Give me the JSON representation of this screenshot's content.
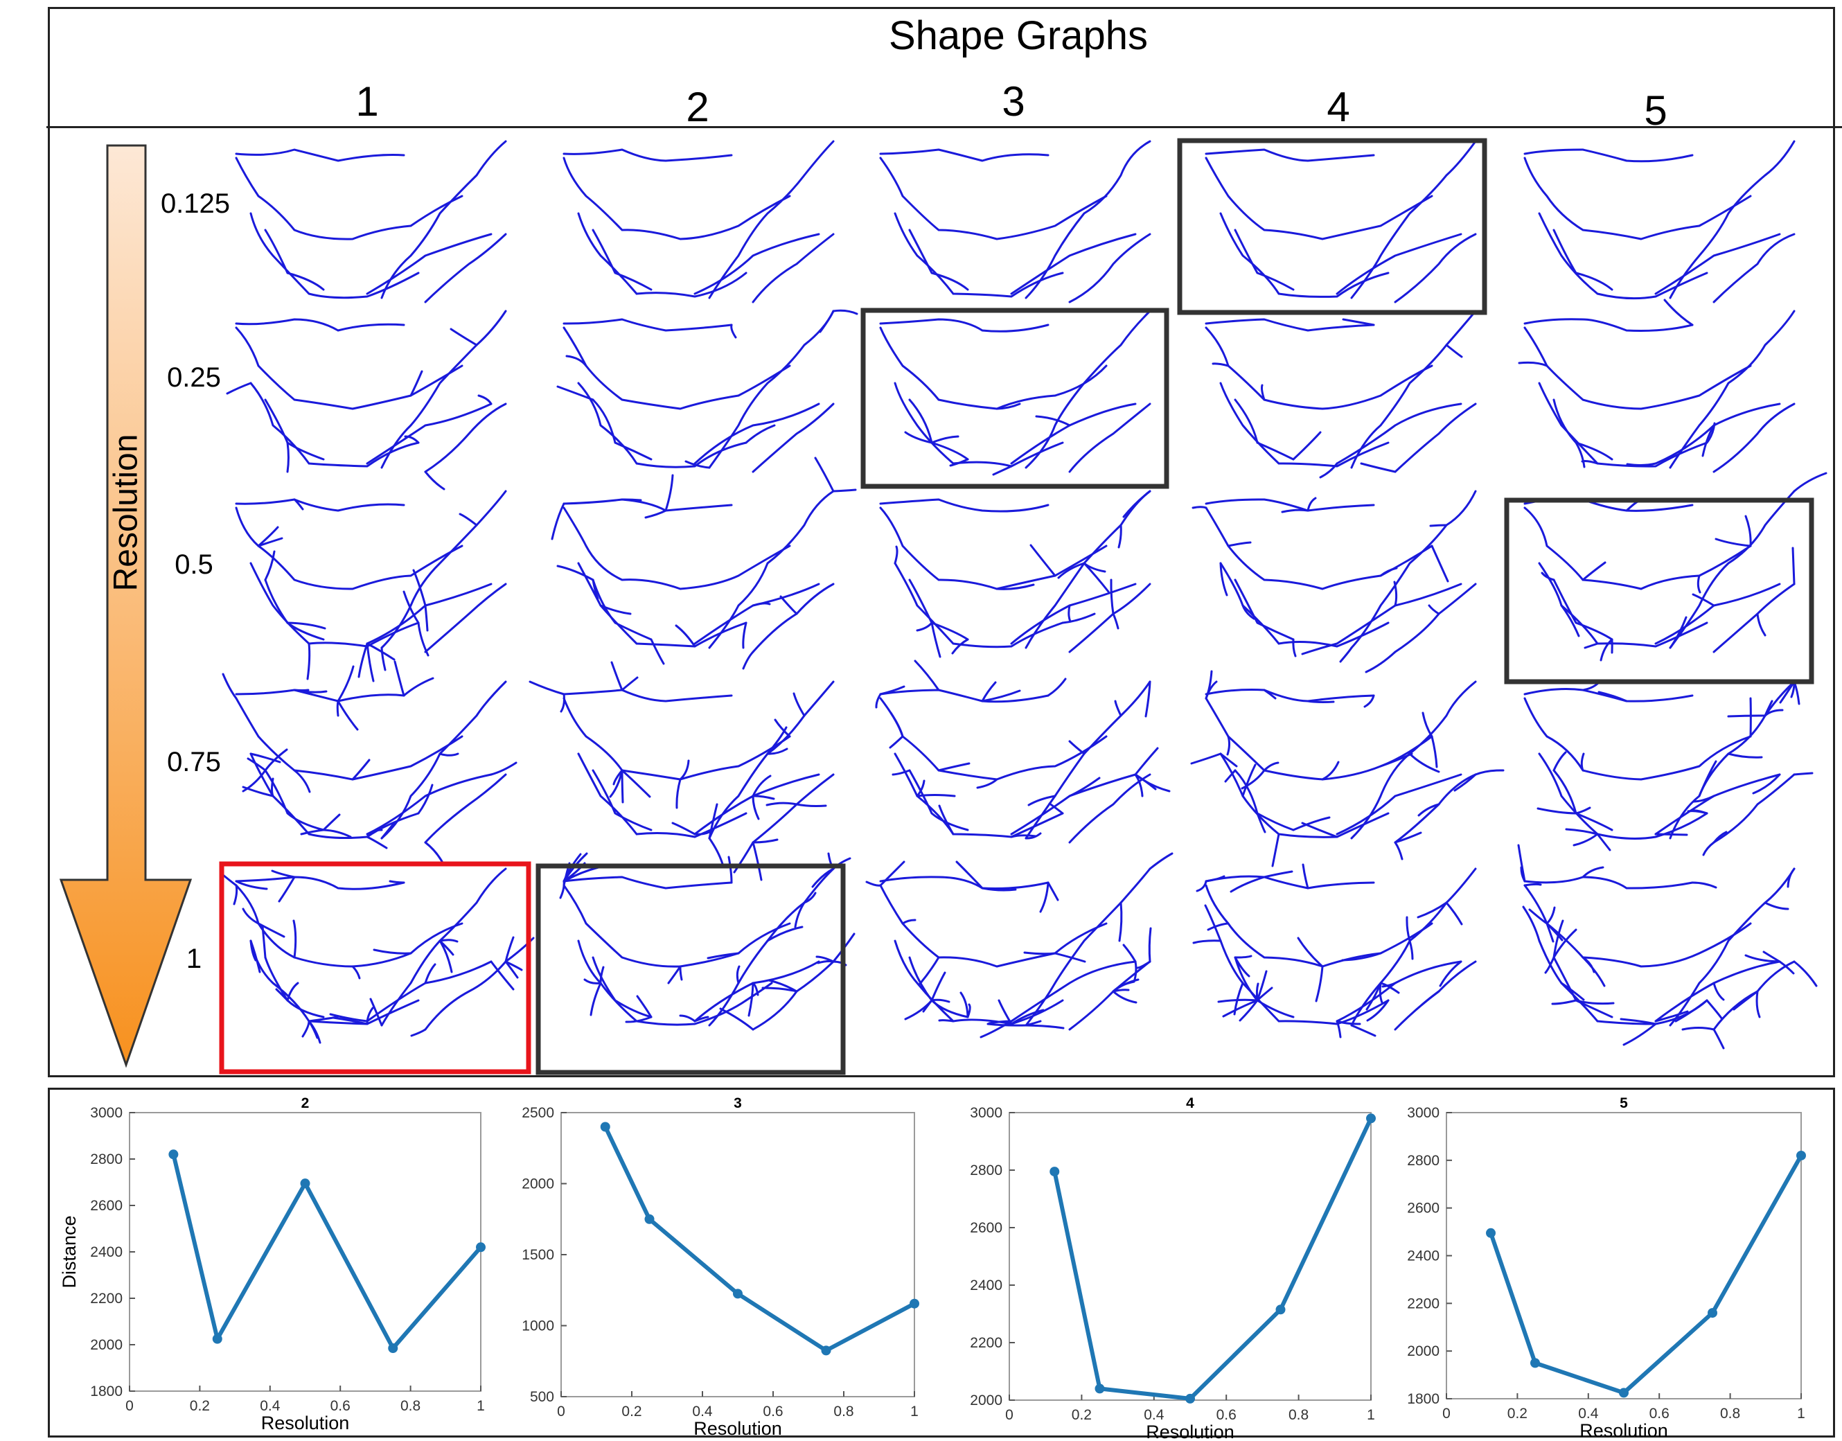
{
  "title": "Shape Graphs",
  "columns": [
    "1",
    "2",
    "3",
    "4",
    "5"
  ],
  "rows": [
    "0.125",
    "0.25",
    "0.5",
    "0.75",
    "1"
  ],
  "arrow_label": "Resolution",
  "highlights": [
    {
      "row": "1",
      "col": "1",
      "color": "#e8141b"
    },
    {
      "row": "1",
      "col": "2",
      "color": "#333333"
    },
    {
      "row": "0.25",
      "col": "3",
      "color": "#333333"
    },
    {
      "row": "0.125",
      "col": "4",
      "color": "#333333"
    },
    {
      "row": "0.5",
      "col": "5",
      "color": "#333333"
    }
  ],
  "colors": {
    "graph": "#1a1adb",
    "line": "#1f77b4",
    "arrow_top": "#fde8d6",
    "arrow_bottom": "#f7911f"
  },
  "chart_data": [
    {
      "type": "line",
      "title": "2",
      "xlabel": "Resolution",
      "ylabel": "Distance",
      "x": [
        0.125,
        0.25,
        0.5,
        0.75,
        1
      ],
      "y": [
        2820,
        2025,
        2695,
        1985,
        2420
      ],
      "xlim": [
        0,
        1
      ],
      "ylim": [
        1800,
        3000
      ],
      "xticks": [
        "0",
        "0.2",
        "0.4",
        "0.6",
        "0.8",
        "1"
      ],
      "yticks": [
        "1800",
        "2000",
        "2200",
        "2400",
        "2600",
        "2800",
        "3000"
      ]
    },
    {
      "type": "line",
      "title": "3",
      "xlabel": "Resolution",
      "ylabel": "",
      "x": [
        0.125,
        0.25,
        0.5,
        0.75,
        1
      ],
      "y": [
        2400,
        1750,
        1225,
        825,
        1155
      ],
      "xlim": [
        0,
        1
      ],
      "ylim": [
        500,
        2500
      ],
      "xticks": [
        "0",
        "0.2",
        "0.4",
        "0.6",
        "0.8",
        "1"
      ],
      "yticks": [
        "500",
        "1000",
        "1500",
        "2000",
        "2500"
      ]
    },
    {
      "type": "line",
      "title": "4",
      "xlabel": "Resolution",
      "ylabel": "",
      "x": [
        0.125,
        0.25,
        0.5,
        0.75,
        1
      ],
      "y": [
        2795,
        2040,
        2005,
        2315,
        2980
      ],
      "xlim": [
        0,
        1
      ],
      "ylim": [
        2000,
        3000
      ],
      "xticks": [
        "0",
        "0.2",
        "0.4",
        "0.6",
        "0.8",
        "1"
      ],
      "yticks": [
        "2000",
        "2200",
        "2400",
        "2600",
        "2800",
        "3000"
      ]
    },
    {
      "type": "line",
      "title": "5",
      "xlabel": "Resolution",
      "ylabel": "",
      "x": [
        0.125,
        0.25,
        0.5,
        0.75,
        1
      ],
      "y": [
        2495,
        1950,
        1825,
        2160,
        2820
      ],
      "xlim": [
        0,
        1
      ],
      "ylim": [
        1800,
        3000
      ],
      "xticks": [
        "0",
        "0.2",
        "0.4",
        "0.6",
        "0.8",
        "1"
      ],
      "yticks": [
        "1800",
        "2000",
        "2200",
        "2400",
        "2600",
        "2800",
        "3000"
      ]
    }
  ]
}
